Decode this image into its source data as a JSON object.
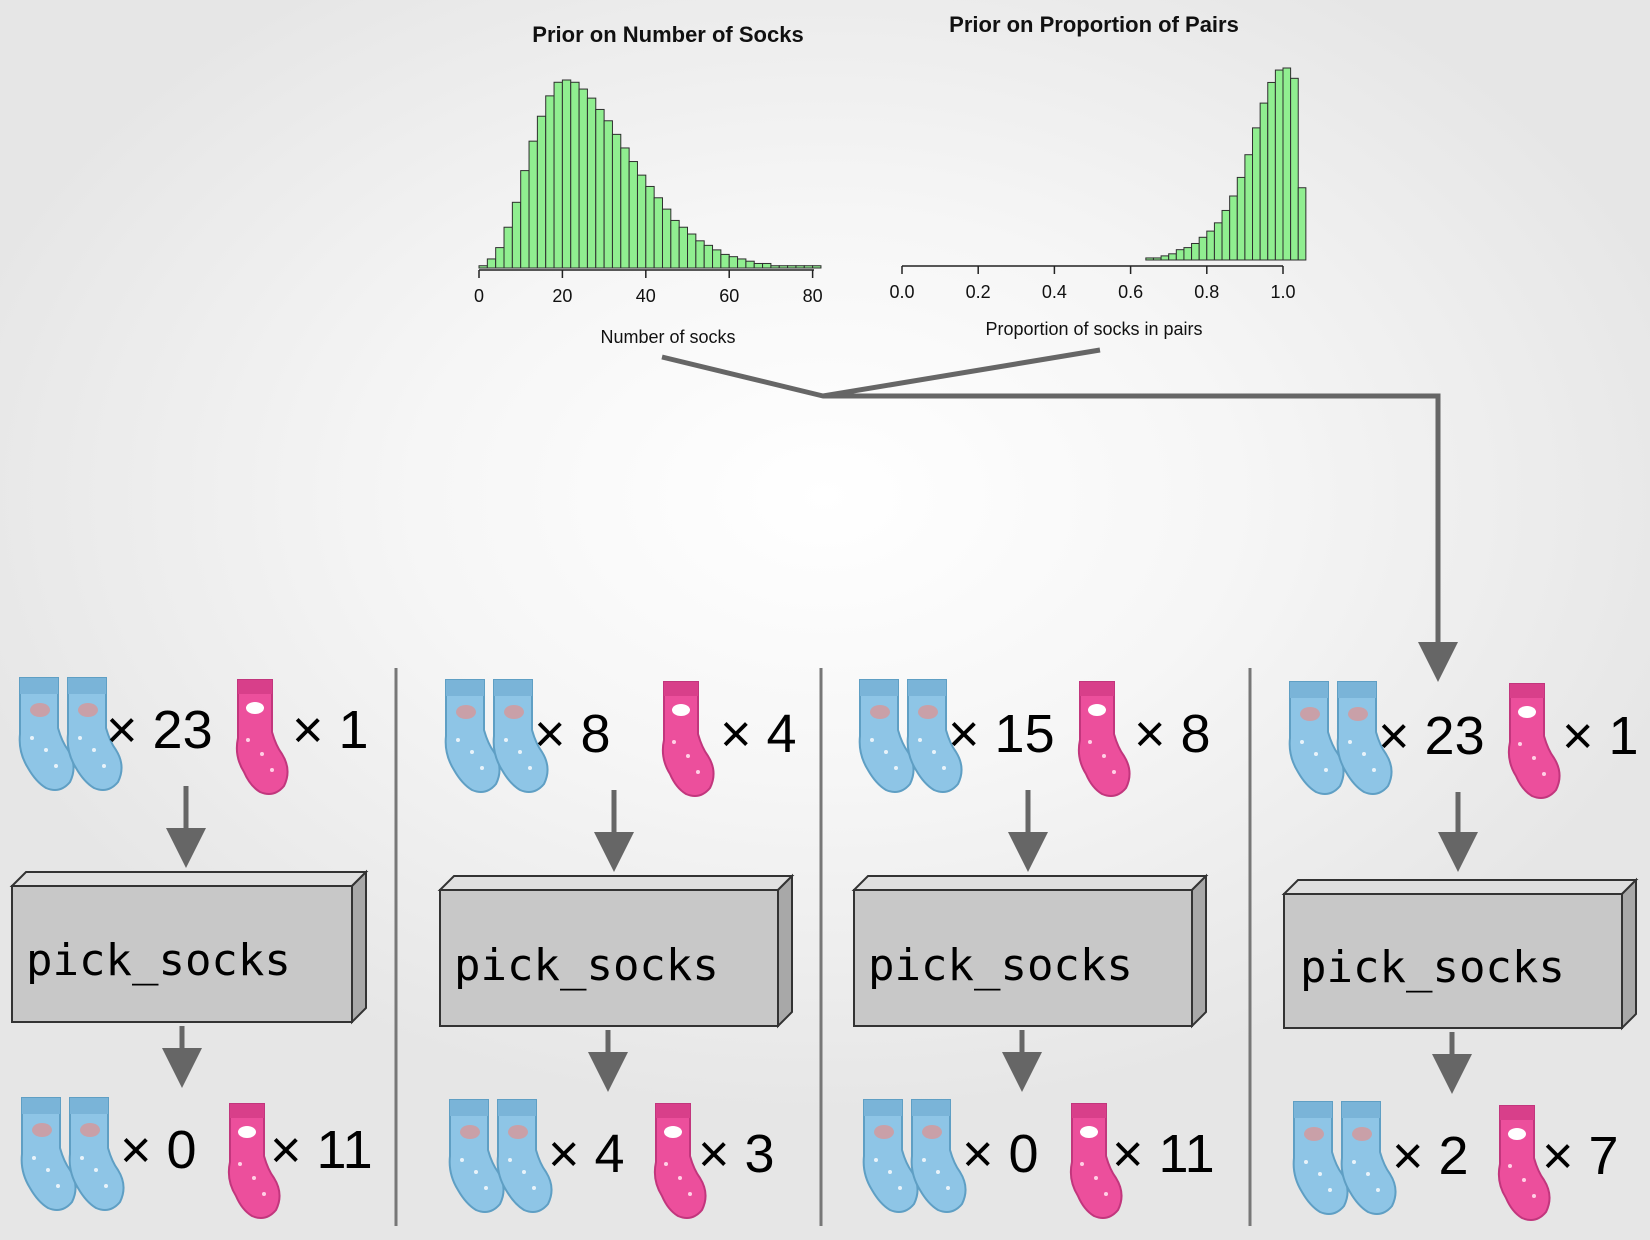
{
  "chart_data": [
    {
      "type": "bar",
      "title": "Prior on Number of Socks",
      "xlabel": "Number of socks",
      "ylabel": "",
      "xlim": [
        0,
        94
      ],
      "x_ticks": [
        "0",
        "20",
        "40",
        "60",
        "80"
      ],
      "x_tick_values": [
        0,
        20,
        40,
        60,
        80
      ],
      "bin_start": 0,
      "bin_width": 2,
      "values": [
        1,
        4,
        9,
        18,
        29,
        43,
        56,
        67,
        76,
        82,
        83,
        82,
        79,
        75,
        70,
        65,
        59,
        53,
        47,
        41,
        36,
        31,
        26,
        21,
        18,
        15,
        12,
        10,
        8,
        6,
        5,
        4,
        3,
        2,
        2,
        1,
        1,
        1,
        1,
        1,
        1,
        0,
        0,
        0,
        0,
        0,
        0
      ],
      "color": "#90ee90",
      "grid": false
    },
    {
      "type": "bar",
      "title": "Prior on Proportion of Pairs",
      "xlabel": "Proportion of socks in pairs",
      "ylabel": "",
      "xlim": [
        0.0,
        1.0
      ],
      "x_ticks": [
        "0.0",
        "0.2",
        "0.4",
        "0.6",
        "0.8",
        "1.0"
      ],
      "x_tick_values": [
        0,
        0.2,
        0.4,
        0.6,
        0.8,
        1.0
      ],
      "bin_start": 0.32,
      "bin_width": 0.02,
      "values": [
        0,
        0,
        0,
        0,
        0,
        0,
        0,
        0,
        0,
        0,
        0,
        0,
        0,
        0,
        0,
        0,
        1,
        1,
        2,
        3,
        5,
        6,
        8,
        11,
        14,
        18,
        24,
        31,
        40,
        51,
        64,
        76,
        86,
        92,
        93,
        88,
        35
      ],
      "color": "#90ee90",
      "grid": false
    }
  ],
  "columns": [
    {
      "top": {
        "blue_count": "× 23",
        "pink_count": "× 1"
      },
      "box_label": "pick_socks",
      "bottom": {
        "blue_count": "× 0",
        "pink_count": "× 11"
      }
    },
    {
      "top": {
        "blue_count": "× 8",
        "pink_count": "× 4"
      },
      "box_label": "pick_socks",
      "bottom": {
        "blue_count": "× 4",
        "pink_count": "× 3"
      }
    },
    {
      "top": {
        "blue_count": "× 15",
        "pink_count": "× 8"
      },
      "box_label": "pick_socks",
      "bottom": {
        "blue_count": "× 0",
        "pink_count": "× 11"
      }
    },
    {
      "top": {
        "blue_count": "× 23",
        "pink_count": "× 1"
      },
      "box_label": "pick_socks",
      "bottom": {
        "blue_count": "× 2",
        "pink_count": "× 7"
      }
    }
  ],
  "colors": {
    "bar_fill": "#90ee90",
    "connector": "#666666",
    "box_fill": "#c8c8c8",
    "blue_sock": "#8ec5e6",
    "pink_sock": "#ec4f9c"
  },
  "icons": {
    "blue_sock": "blue-sock-icon",
    "pink_sock": "pink-sock-icon"
  }
}
